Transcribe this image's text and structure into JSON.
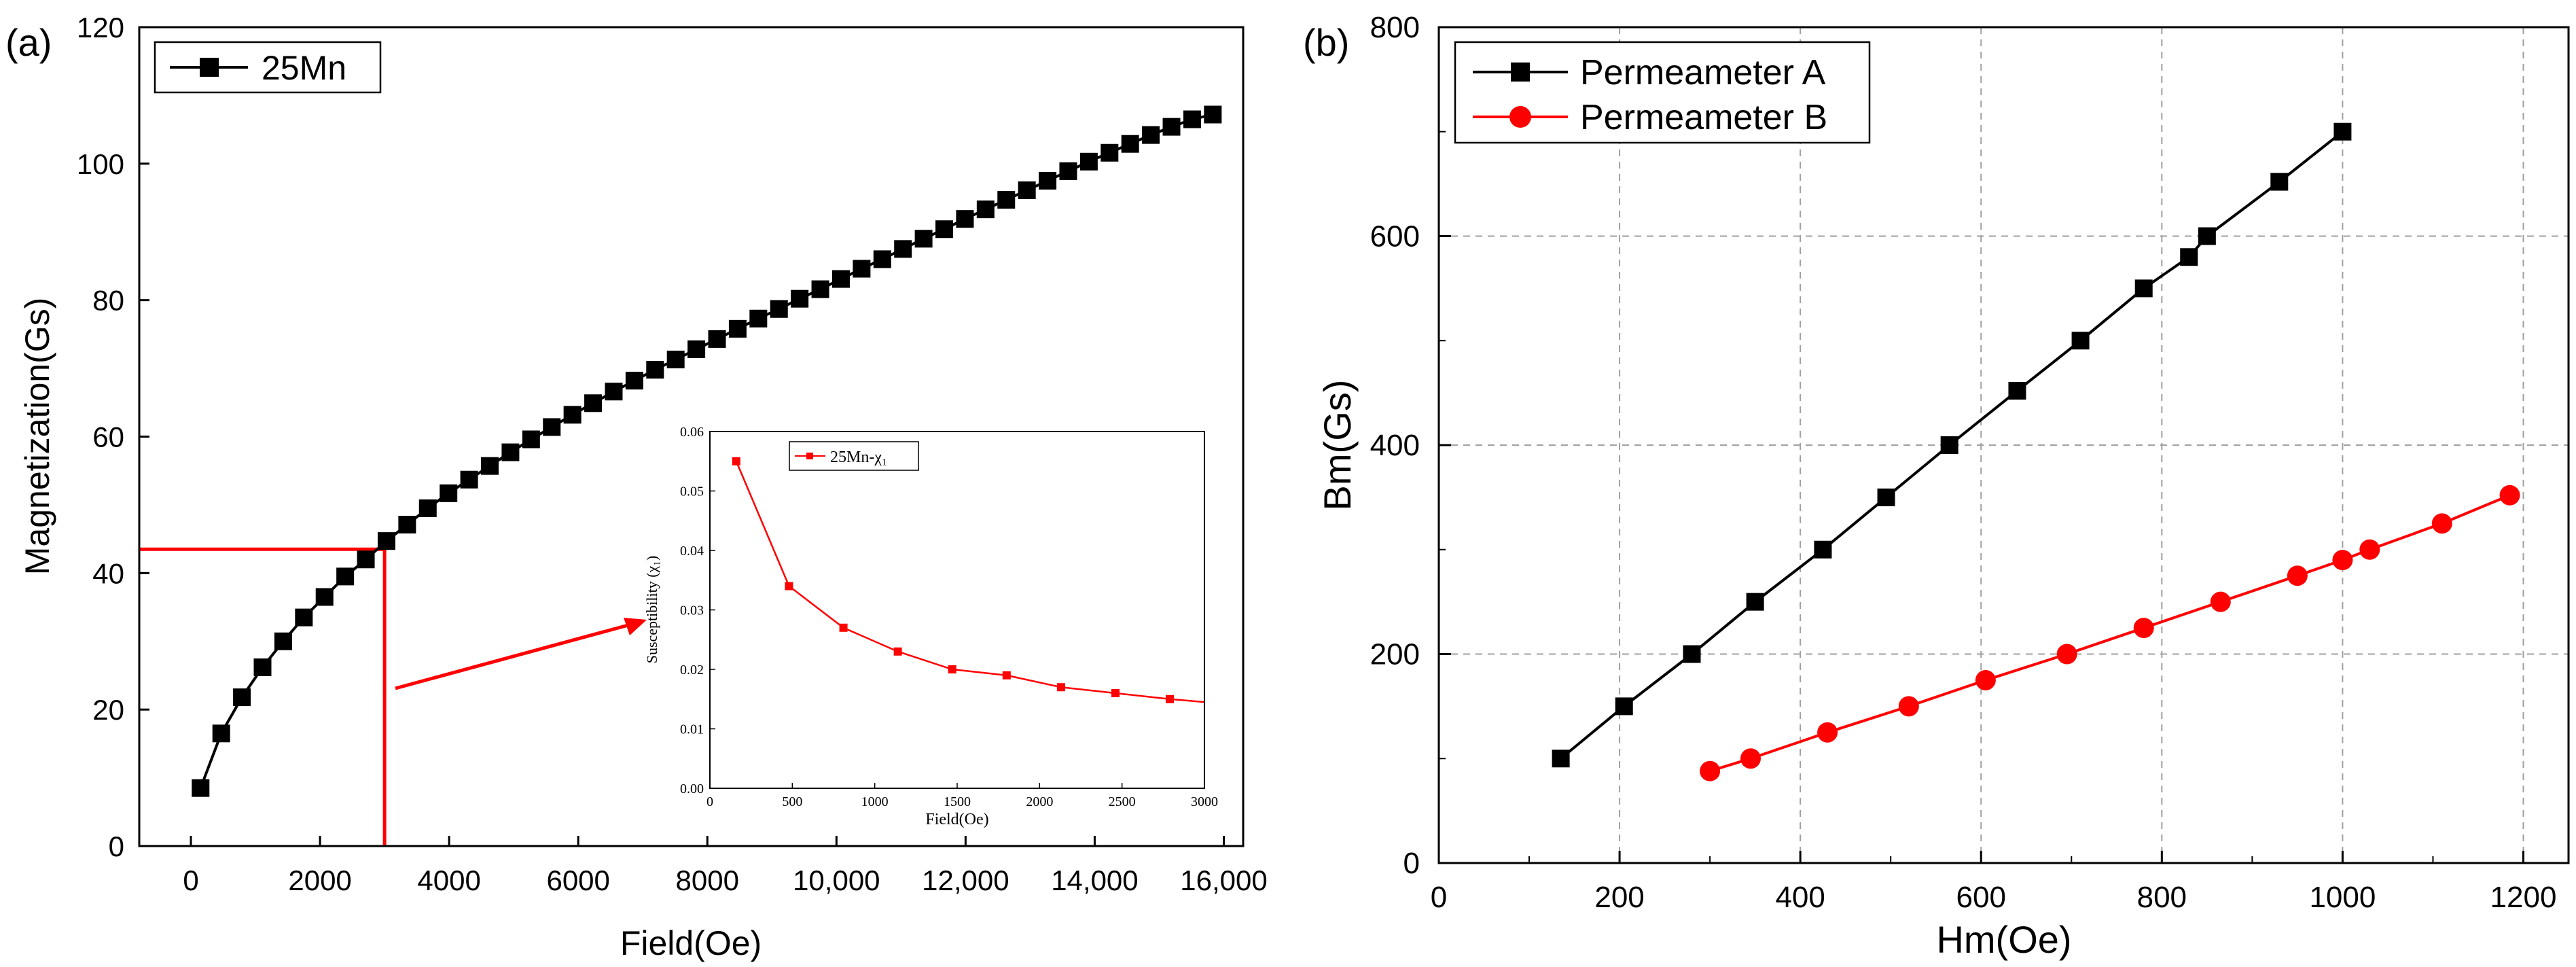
{
  "chart_data": [
    {
      "panel_label": "(a)",
      "type": "line",
      "xlabel": "Field(Oe)",
      "ylabel": "Magnetization(Gs)",
      "xlim": [
        -800,
        16300
      ],
      "ylim": [
        0,
        120
      ],
      "x_ticks": [
        0,
        2000,
        4000,
        6000,
        8000,
        10000,
        12000,
        14000,
        16000
      ],
      "x_tick_labels": [
        "0",
        "2000",
        "4000",
        "6000",
        "8000",
        "10,000",
        "12,000",
        "14,000",
        "16,000"
      ],
      "y_ticks": [
        0,
        20,
        40,
        60,
        80,
        100,
        120
      ],
      "y_tick_labels": [
        "0",
        "20",
        "40",
        "60",
        "80",
        "100",
        "120"
      ],
      "legend": {
        "position": "top-left",
        "entries": [
          "25Mn"
        ]
      },
      "series": [
        {
          "name": "25Mn",
          "color": "#000000",
          "marker": "square",
          "x": [
            150,
            470,
            790,
            1110,
            1430,
            1750,
            2070,
            2390,
            2710,
            3030,
            3350,
            3670,
            3990,
            4310,
            4630,
            4950,
            5270,
            5590,
            5910,
            6230,
            6550,
            6870,
            7190,
            7510,
            7830,
            8150,
            8470,
            8790,
            9110,
            9430,
            9750,
            10070,
            10390,
            10710,
            11030,
            11350,
            11670,
            11990,
            12310,
            12630,
            12950,
            13270,
            13590,
            13910,
            14230,
            14550,
            14870,
            15190,
            15510,
            15830
          ],
          "y": [
            8.5,
            16.5,
            21.8,
            26.2,
            30,
            33.5,
            36.5,
            39.5,
            42,
            44.7,
            47.1,
            49.5,
            51.7,
            53.7,
            55.7,
            57.7,
            59.6,
            61.4,
            63.2,
            64.9,
            66.6,
            68.2,
            69.8,
            71.3,
            72.8,
            74.3,
            75.8,
            77.3,
            78.7,
            80.2,
            81.6,
            83.1,
            84.6,
            86,
            87.5,
            89,
            90.4,
            91.9,
            93.3,
            94.7,
            96.1,
            97.5,
            98.9,
            100.3,
            101.6,
            102.9,
            104.2,
            105.4,
            106.5,
            107.2
          ]
        }
      ],
      "annotations": {
        "guide_field": 3000,
        "guide_magnetization": 43.5,
        "guide_color": "#ff0000",
        "arrow_color": "#ff0000"
      },
      "inset": {
        "type": "line",
        "xlabel": "Field(Oe)",
        "ylabel": "Susceptibility (χ₁)",
        "xlim": [
          0,
          3000
        ],
        "ylim": [
          0,
          0.06
        ],
        "x_ticks": [
          0,
          500,
          1000,
          1500,
          2000,
          2500,
          3000
        ],
        "x_tick_labels": [
          "0",
          "500",
          "1000",
          "1500",
          "2000",
          "2500",
          "3000"
        ],
        "y_ticks": [
          0,
          0.01,
          0.02,
          0.03,
          0.04,
          0.05,
          0.06
        ],
        "y_tick_labels": [
          "0.00",
          "0.01",
          "0.02",
          "0.03",
          "0.04",
          "0.05",
          "0.06"
        ],
        "legend": {
          "position": "top-left",
          "entries": [
            "25Mn-χ₁"
          ]
        },
        "series": [
          {
            "name": "25Mn-χ₁",
            "color": "#ff0000",
            "marker": "square",
            "x": [
              160,
              480,
              810,
              1140,
              1470,
              1800,
              2130,
              2460,
              2790,
              3000
            ],
            "y": [
              0.055,
              0.034,
              0.027,
              0.023,
              0.02,
              0.019,
              0.017,
              0.016,
              0.015,
              0.0145
            ]
          }
        ]
      }
    },
    {
      "panel_label": "(b)",
      "type": "line",
      "xlabel": "Hm(Oe)",
      "ylabel": "Bm(Gs)",
      "xlim": [
        0,
        1250
      ],
      "ylim": [
        0,
        800
      ],
      "grid": true,
      "x_ticks": [
        0,
        200,
        400,
        600,
        800,
        1000,
        1200
      ],
      "x_tick_labels": [
        "0",
        "200",
        "400",
        "600",
        "800",
        "1000",
        "1200"
      ],
      "y_ticks": [
        0,
        200,
        400,
        600,
        800
      ],
      "y_tick_labels": [
        "0",
        "200",
        "400",
        "600",
        "800"
      ],
      "legend": {
        "position": "top-left",
        "entries": [
          "Permeameter A",
          "Permeameter B"
        ]
      },
      "series": [
        {
          "name": "Permeameter A",
          "color": "#000000",
          "marker": "square",
          "x": [
            135,
            205,
            280,
            350,
            425,
            495,
            565,
            640,
            710,
            780,
            830,
            850,
            930,
            1000
          ],
          "y": [
            100,
            150,
            200,
            250,
            300,
            350,
            400,
            452,
            500,
            550,
            580,
            600,
            652,
            700
          ]
        },
        {
          "name": "Permeameter B",
          "color": "#ff0000",
          "marker": "circle",
          "x": [
            300,
            345,
            430,
            520,
            605,
            695,
            780,
            865,
            950,
            1000,
            1030,
            1110,
            1185
          ],
          "y": [
            88,
            100,
            125,
            150,
            175,
            200,
            225,
            250,
            275,
            290,
            300,
            325,
            352
          ]
        }
      ]
    }
  ]
}
